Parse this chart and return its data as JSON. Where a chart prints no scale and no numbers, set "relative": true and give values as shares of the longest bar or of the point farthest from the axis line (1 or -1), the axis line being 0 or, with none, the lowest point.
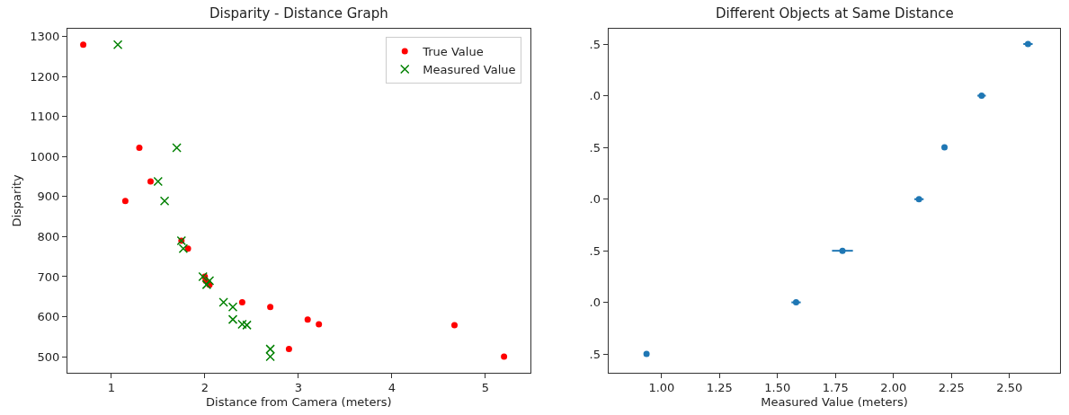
{
  "chart_data": [
    {
      "type": "scatter",
      "title": "Disparity - Distance Graph",
      "xlabel": "Distance from Camera (meters)",
      "ylabel": "Disparity",
      "xlim": [
        0.53,
        5.48
      ],
      "xticks": [
        1,
        2,
        3,
        4,
        5
      ],
      "ylim": [
        460,
        1320
      ],
      "yticks": [
        500,
        600,
        700,
        800,
        900,
        1000,
        1100,
        1200,
        1300
      ],
      "legend": "top right",
      "series": [
        {
          "name": "True Value",
          "color": "#ff0000",
          "marker": "circle",
          "x": [
            0.7,
            1.3,
            1.42,
            1.15,
            1.75,
            1.82,
            2.0,
            2.01,
            2.05,
            2.4,
            2.7,
            3.1,
            3.22,
            4.67,
            2.9,
            5.2
          ],
          "values": [
            1280,
            1022,
            938,
            889,
            790,
            770,
            700,
            690,
            680,
            636,
            624,
            593,
            581,
            579,
            519,
            500
          ]
        },
        {
          "name": "Measured Value",
          "color": "#008000",
          "marker": "cross",
          "x": [
            1.07,
            1.7,
            1.5,
            1.57,
            1.75,
            1.77,
            1.98,
            2.05,
            2.02,
            2.2,
            2.3,
            2.3,
            2.4,
            2.45,
            2.7,
            2.7
          ],
          "values": [
            1280,
            1022,
            938,
            889,
            790,
            770,
            700,
            690,
            680,
            636,
            624,
            593,
            581,
            579,
            519,
            500
          ]
        }
      ]
    },
    {
      "type": "scatter",
      "title": "Different Objects at Same Distance",
      "xlabel": "Measured Value (meters)",
      "xlim": [
        0.77,
        2.72
      ],
      "xticks": [
        {
          "value": 1.0,
          "label": "1.00"
        },
        1.25,
        {
          "value": 1.5,
          "label": "1.50"
        },
        1.75,
        {
          "value": 2.0,
          "label": "2.00"
        },
        2.25,
        {
          "value": 2.5,
          "label": "2.50"
        }
      ],
      "relative": true,
      "y_categories": [
        ".5",
        ".0",
        ".5",
        ".0",
        ".5",
        ".0",
        ".5"
      ],
      "series": [
        {
          "color": "#1f77b4",
          "marker": "circle",
          "x": [
            0.935,
            1.58,
            1.78,
            2.11,
            2.22,
            2.38,
            2.58
          ],
          "values": [
            0.057,
            0.214,
            0.371,
            0.528,
            0.686,
            0.843,
            1
          ],
          "xerrors": [
            null,
            0.02,
            0.045,
            0.02,
            null,
            0.018,
            0.02
          ]
        }
      ]
    }
  ]
}
